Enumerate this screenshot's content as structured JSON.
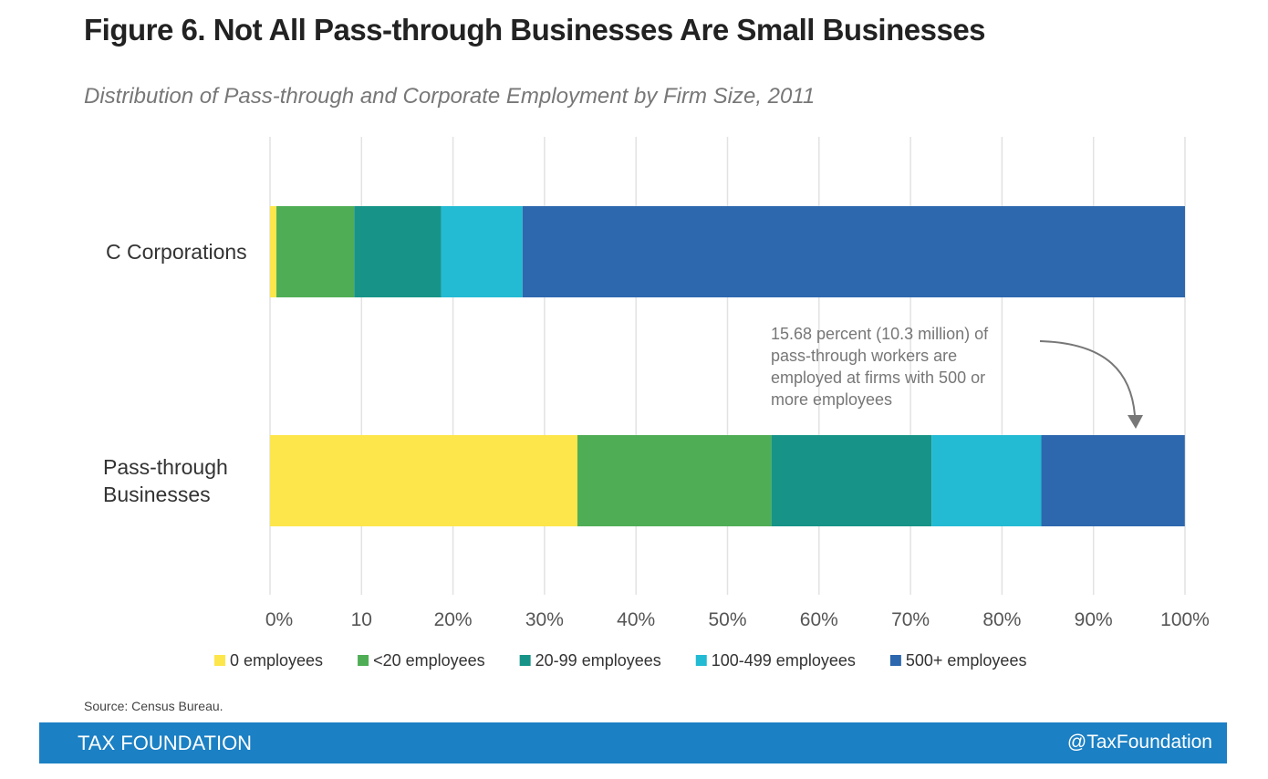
{
  "title": "Figure 6. Not All Pass-through Businesses Are Small Businesses",
  "subtitle": "Distribution of Pass-through and Corporate Employment by Firm Size, 2011",
  "source": "Source: Census Bureau.",
  "footer": {
    "brand": "TAX FOUNDATION",
    "handle": "@TaxFoundation"
  },
  "colors": {
    "footer": "#1b80c4",
    "grid": "#e2e2e2"
  },
  "chart_data": {
    "type": "bar",
    "orientation": "horizontal",
    "stacked": true,
    "xlim": [
      0,
      100
    ],
    "grid": true,
    "legend_position": "bottom",
    "tick_labels": [
      "0%",
      "10",
      "20%",
      "30%",
      "40%",
      "50%",
      "60%",
      "70%",
      "80%",
      "90%",
      "100%"
    ],
    "categories": [
      "C Corporations",
      "Pass-through\nBusinesses"
    ],
    "series": [
      {
        "name": "0 employees",
        "color": "#fde64b",
        "values": [
          0.7,
          33.6
        ]
      },
      {
        "name": "<20 employees",
        "color": "#4fae55",
        "values": [
          8.5,
          21.2
        ]
      },
      {
        "name": "20-99 employees",
        "color": "#179487",
        "values": [
          9.5,
          17.5
        ]
      },
      {
        "name": "100-499 employees",
        "color": "#23bad3",
        "values": [
          8.9,
          12.0
        ]
      },
      {
        "name": "500+ employees",
        "color": "#2d67ae",
        "values": [
          72.4,
          15.68
        ]
      }
    ],
    "annotation": {
      "text": "15.68 percent (10.3 million) of\npass-through workers are\nemployed at firms with 500 or\nmore employees",
      "target_category": "Pass-through\nBusinesses",
      "target_series": "500+ employees"
    }
  }
}
